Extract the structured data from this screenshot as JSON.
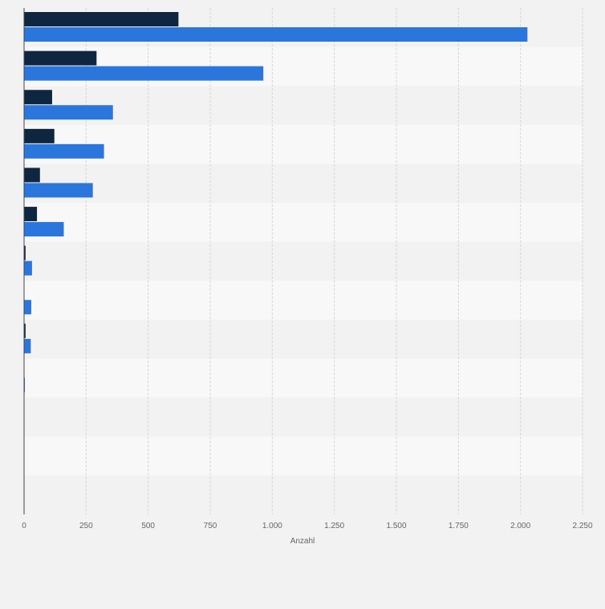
{
  "chart_data": {
    "type": "bar",
    "orientation": "horizontal",
    "categories": [
      "",
      "",
      "",
      "",
      "",
      "",
      "",
      "",
      "",
      "",
      "",
      "",
      ""
    ],
    "series": [
      {
        "color": "#0f2640",
        "values": [
          622,
          292,
          113,
          122,
          64,
          52,
          6,
          0,
          6,
          0,
          0,
          0,
          0
        ]
      },
      {
        "color": "#2a76dd",
        "values": [
          2028,
          964,
          358,
          322,
          277,
          160,
          32,
          29,
          27,
          2,
          0,
          0,
          0
        ]
      }
    ],
    "xlabel": "Anzahl",
    "xlim": [
      0,
      2250
    ],
    "xticks": [
      0,
      250,
      500,
      750,
      1000,
      1250,
      1500,
      1750,
      2000,
      2250
    ],
    "xtick_labels": [
      "0",
      "250",
      "500",
      "750",
      "1.000",
      "1.250",
      "1.500",
      "1.750",
      "2.000",
      "2.250"
    ],
    "grid": true,
    "legend": "none"
  }
}
